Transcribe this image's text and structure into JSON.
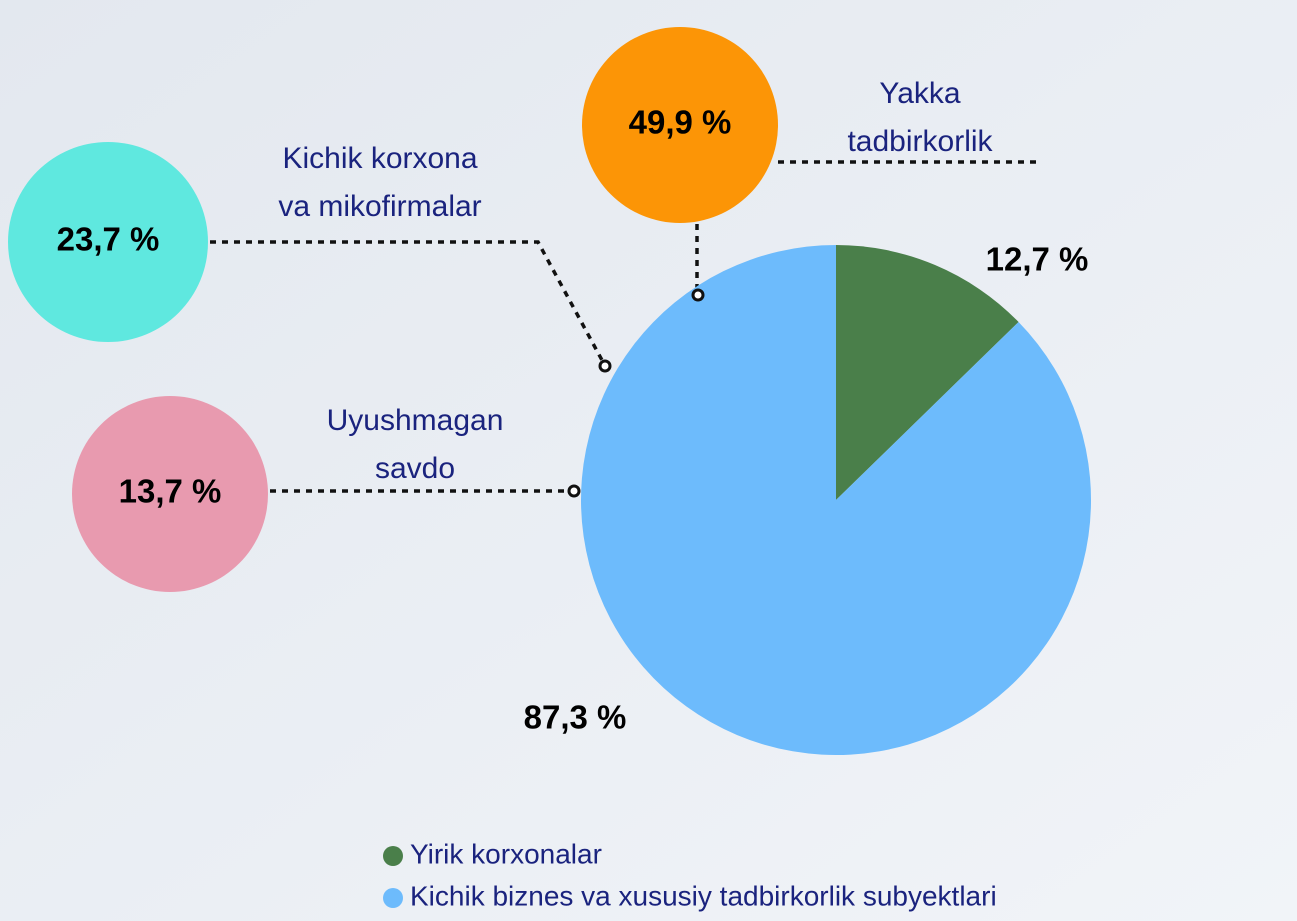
{
  "chart_data": {
    "type": "pie",
    "categories": [
      "Yirik korxonalar",
      "Kichik biznes va xususiy tadbirkorlik subyektlari"
    ],
    "values": [
      12.7,
      87.3
    ],
    "value_labels": [
      "12,7 %",
      "87,3 %"
    ],
    "colors": [
      "#4a7f4a",
      "#6dbbfc"
    ],
    "breakdown": [
      {
        "name": [
          "Yakka",
          "tadbirkorlik"
        ],
        "label": "49,9 %",
        "color": "#fc9506"
      },
      {
        "name": [
          "Kichik korxona",
          "va mikofirmalar"
        ],
        "label": "23,7 %",
        "color": "#5fe8df"
      },
      {
        "name": [
          "Uyushmagan",
          "savdo"
        ],
        "label": "13,7 %",
        "color": "#e89aaf"
      }
    ]
  }
}
